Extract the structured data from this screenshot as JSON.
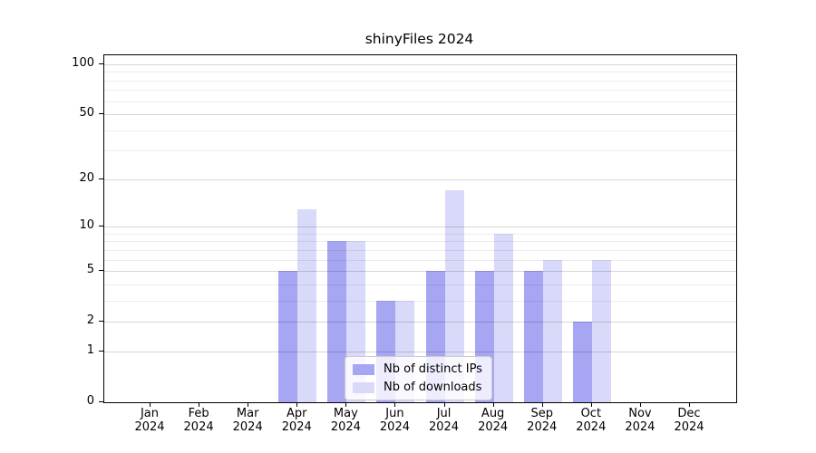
{
  "title": "shinyFiles 2024",
  "chart_data": {
    "type": "bar",
    "title": "shinyFiles 2024",
    "categories": [
      "Jan",
      "Feb",
      "Mar",
      "Apr",
      "May",
      "Jun",
      "Jul",
      "Aug",
      "Sep",
      "Oct",
      "Nov",
      "Dec"
    ],
    "year_label": "2024",
    "series": [
      {
        "name": "Nb of distinct IPs",
        "color": "#a6a6f2",
        "values": [
          0,
          0,
          0,
          5,
          8,
          3,
          5,
          5,
          5,
          2,
          0,
          0
        ]
      },
      {
        "name": "Nb of downloads",
        "color": "#d9d9f9",
        "values": [
          0,
          0,
          0,
          13,
          8,
          3,
          17,
          9,
          6,
          6,
          0,
          0
        ]
      }
    ],
    "y_axis": {
      "scale": "log1p",
      "ticks": [
        100,
        50,
        20,
        10,
        5,
        2,
        1,
        0
      ],
      "minor_ticks": [
        3,
        4,
        6,
        7,
        8,
        9,
        30,
        40,
        60,
        70,
        80,
        90
      ],
      "range_bottom": 0,
      "range_top_approx": 113
    },
    "x_axis": {
      "tick_lines": 2
    },
    "legend": {
      "position": "bottom-center",
      "entries": [
        "Nb of distinct IPs",
        "Nb of downloads"
      ]
    },
    "grid": "horizontal",
    "colors": {
      "axis": "#000000",
      "grid_major": "#d6d6d6",
      "grid_minor": "#efefef",
      "background": "#ffffff"
    }
  }
}
